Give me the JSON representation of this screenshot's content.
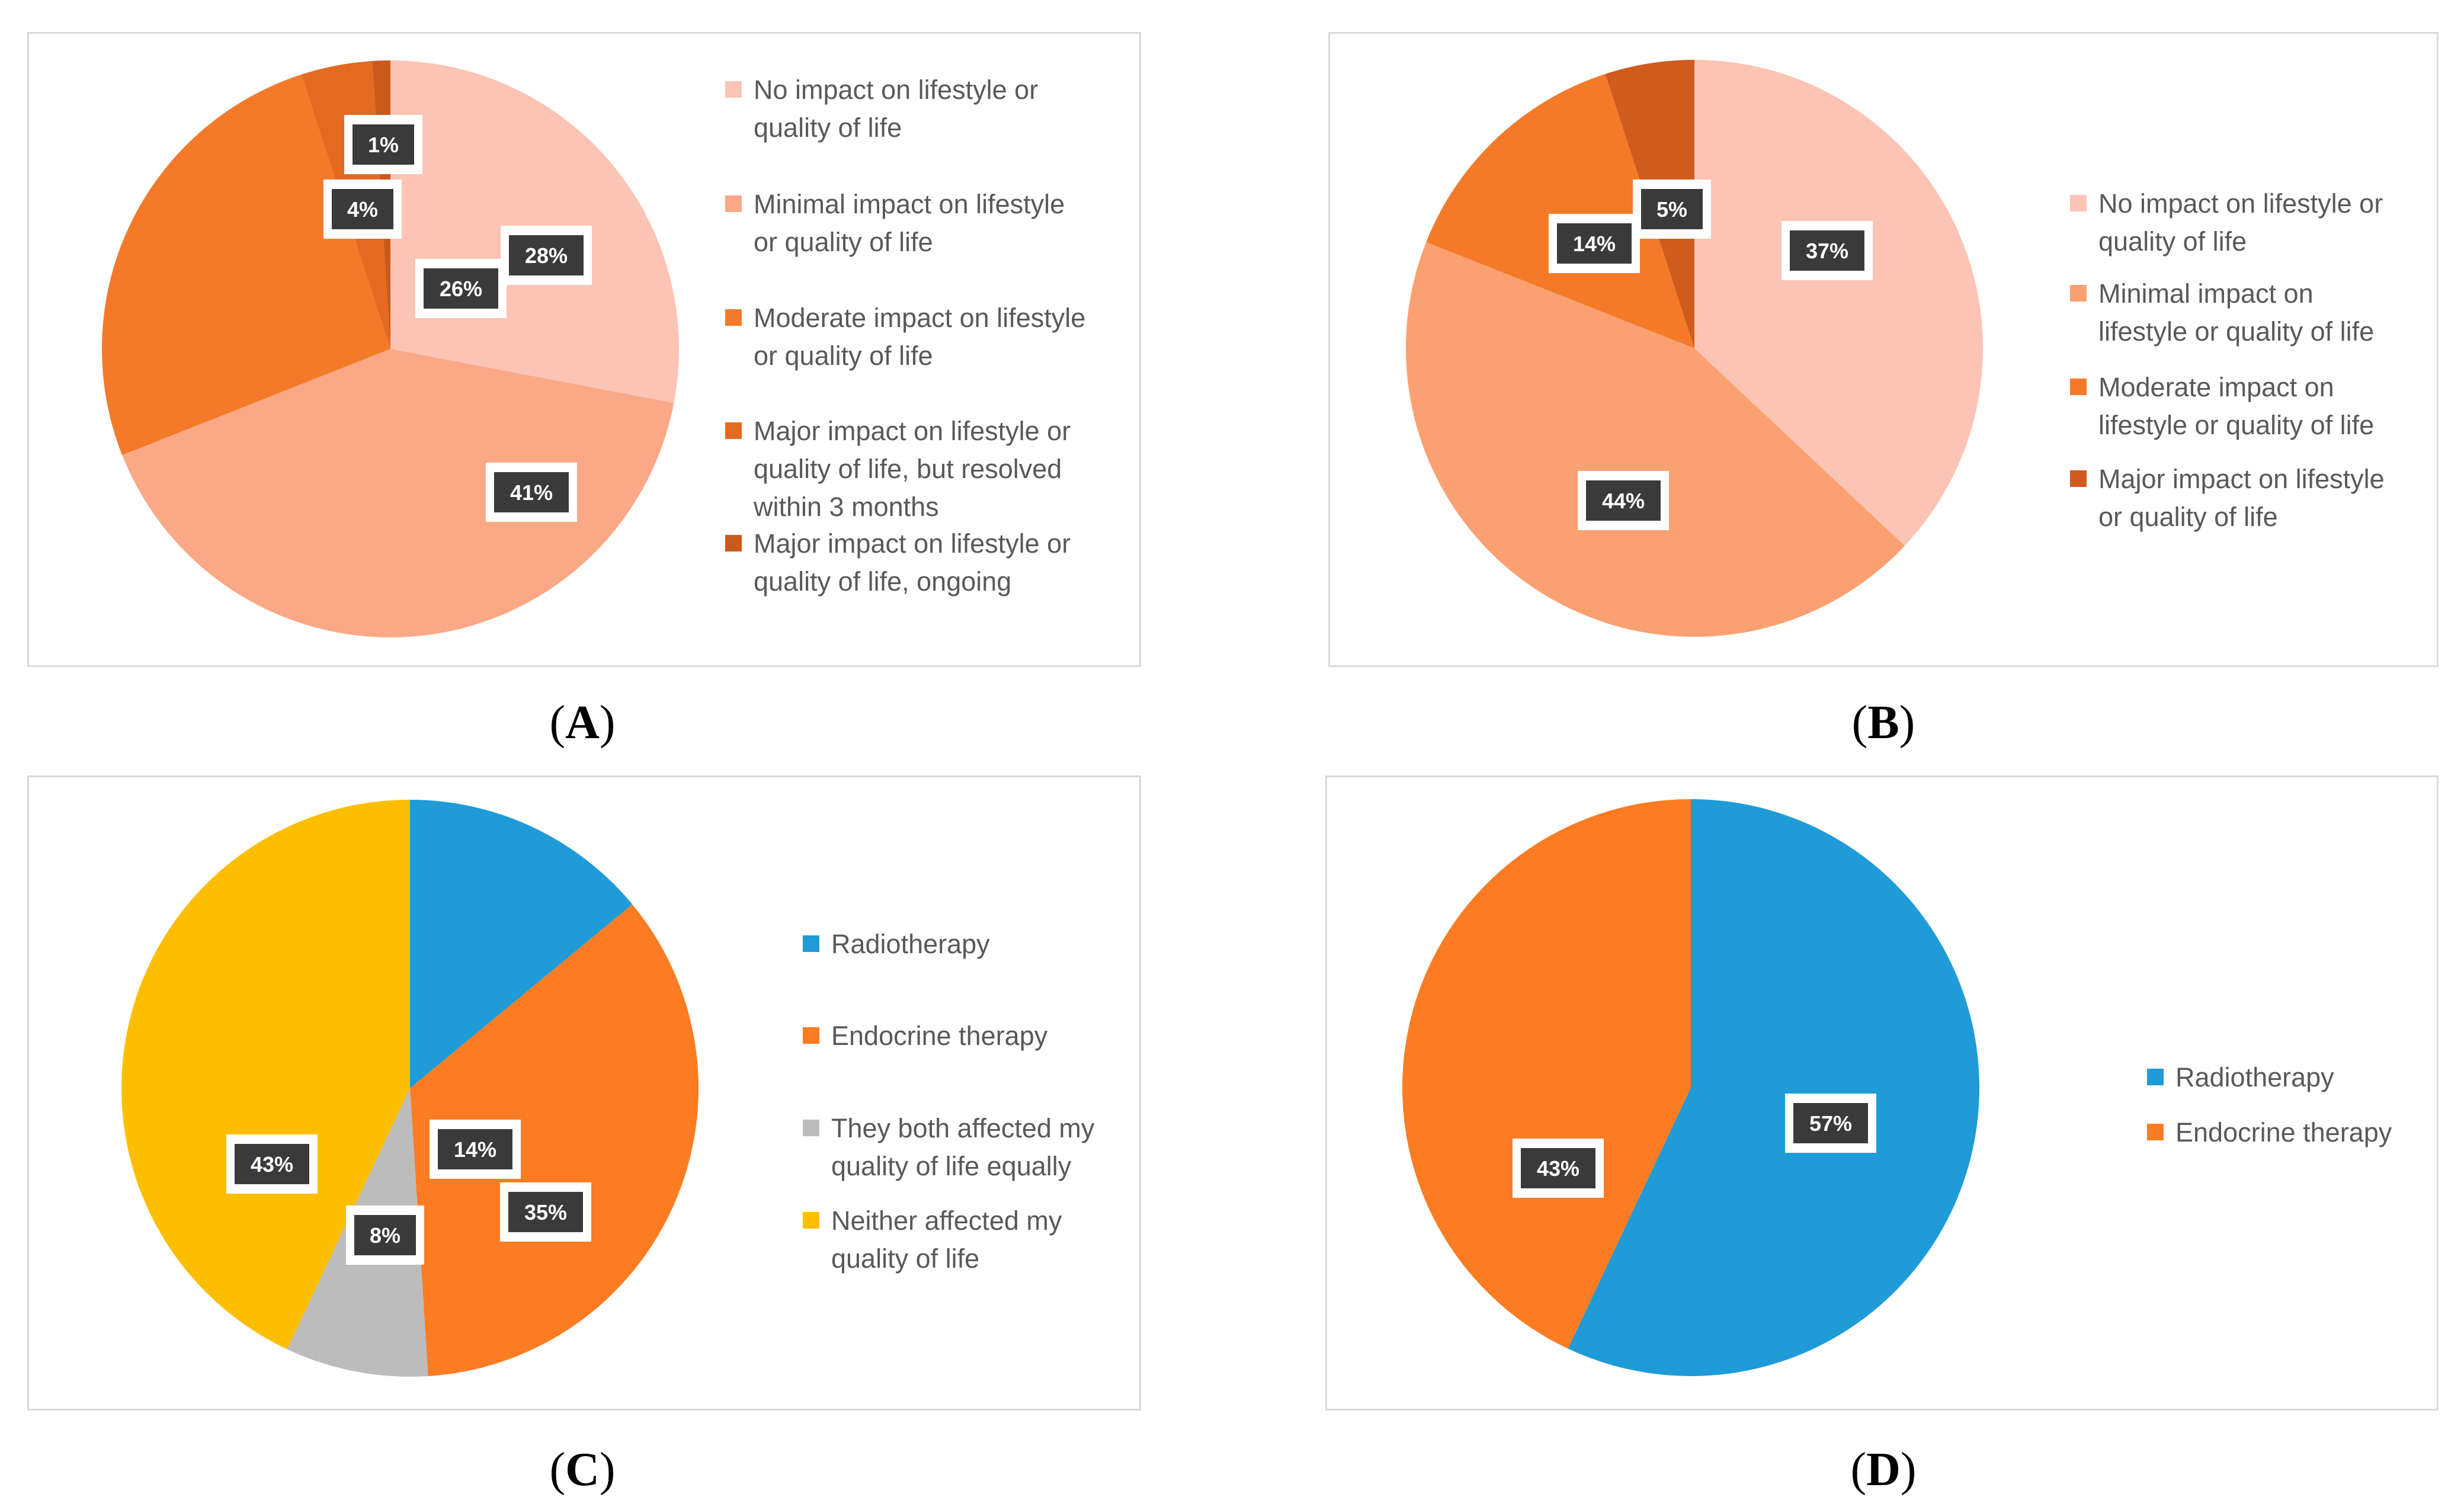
{
  "captions": {
    "a": "A",
    "b": "B",
    "c": "C",
    "d": "D"
  },
  "chart_data": [
    {
      "panel": "A",
      "type": "pie",
      "start": "top, clockwise",
      "slices": [
        {
          "label": "No impact on lifestyle or quality of life",
          "value": 28,
          "data_label": "28%",
          "color": "#fcc4b4"
        },
        {
          "label": "Minimal impact on lifestyle or quality of life",
          "value": 41,
          "data_label": "41%",
          "color": "#fba887"
        },
        {
          "label": "Moderate impact on lifestyle or quality of life",
          "value": 26,
          "data_label": "26%",
          "color": "#f47a29"
        },
        {
          "label": "Major impact on lifestyle or quality of life, but resolved within 3 months",
          "value": 4,
          "data_label": "4%",
          "color": "#e46a21"
        },
        {
          "label": "Major impact on lifestyle or quality of life, ongoing",
          "value": 1,
          "data_label": "1%",
          "color": "#c95a1c"
        }
      ],
      "legend_lines": [
        [
          "No impact on lifestyle or",
          "quality of life"
        ],
        [
          "Minimal impact on lifestyle",
          "or quality of life"
        ],
        [
          "Moderate impact on lifestyle",
          "or quality of life"
        ],
        [
          "Major impact on lifestyle or",
          "quality of life, but resolved",
          "within 3 months"
        ],
        [
          "Major impact on lifestyle or",
          "quality of life, ongoing"
        ]
      ]
    },
    {
      "panel": "B",
      "type": "pie",
      "start": "top, clockwise",
      "slices": [
        {
          "label": "No impact on lifestyle or quality of life",
          "value": 37,
          "data_label": "37%",
          "color": "#fcc4b4"
        },
        {
          "label": "Minimal impact on lifestyle or quality of life",
          "value": 44,
          "data_label": "44%",
          "color": "#fba071"
        },
        {
          "label": "Moderate impact on lifestyle or quality of life",
          "value": 14,
          "data_label": "14%",
          "color": "#f47a29"
        },
        {
          "label": "Major impact on lifestyle or quality of life",
          "value": 5,
          "data_label": "5%",
          "color": "#cf5b1c"
        }
      ],
      "legend_lines": [
        [
          "No impact on lifestyle or",
          "quality of life"
        ],
        [
          "Minimal impact on",
          "lifestyle or quality of life"
        ],
        [
          "Moderate impact on",
          "lifestyle or quality of life"
        ],
        [
          "Major impact on lifestyle",
          "or quality of life"
        ]
      ]
    },
    {
      "panel": "C",
      "type": "pie",
      "start": "top, clockwise",
      "slices": [
        {
          "label": "Radiotherapy",
          "value": 14,
          "data_label": "14%",
          "color": "#1f9bd7"
        },
        {
          "label": "Endocrine therapy",
          "value": 35,
          "data_label": "35%",
          "color": "#fb7c23"
        },
        {
          "label": "They both affected my quality of life equally",
          "value": 8,
          "data_label": "8%",
          "color": "#bcbcbc"
        },
        {
          "label": "Neither affected my quality of life",
          "value": 43,
          "data_label": "43%",
          "color": "#fdbe00"
        }
      ],
      "legend_lines": [
        [
          "Radiotherapy"
        ],
        [
          "Endocrine therapy"
        ],
        [
          "They both affected my",
          "quality of life equally"
        ],
        [
          "Neither affected my",
          "quality of life"
        ]
      ]
    },
    {
      "panel": "D",
      "type": "pie",
      "start": "top, clockwise",
      "slices": [
        {
          "label": "Radiotherapy",
          "value": 57,
          "data_label": "57%",
          "color": "#1f9bd7"
        },
        {
          "label": "Endocrine therapy",
          "value": 43,
          "data_label": "43%",
          "color": "#fb7c23"
        }
      ],
      "legend_lines": [
        [
          "Radiotherapy"
        ],
        [
          "Endocrine therapy"
        ]
      ]
    }
  ]
}
